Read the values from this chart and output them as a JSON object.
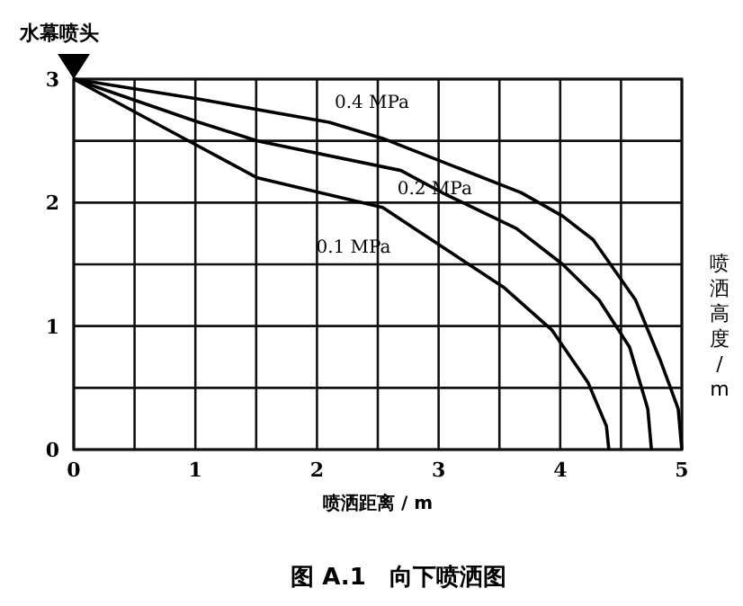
{
  "chart_data": {
    "type": "line",
    "title": "图 A.1　向下喷洒图",
    "xlabel": "喷洒距离 / m",
    "ylabel": "喷洒高度 / m",
    "annotations": [
      {
        "text": "水幕喷头",
        "x": 0,
        "y": 3
      }
    ],
    "xlim": [
      0,
      5
    ],
    "ylim": [
      0,
      3
    ],
    "xticks": [
      0,
      {
        "value": 0.5,
        "label": null
      },
      1,
      {
        "value": 1.5,
        "label": null
      },
      2,
      {
        "value": 2.5,
        "label": null
      },
      3,
      {
        "value": 3.5,
        "label": null
      },
      4,
      {
        "value": 4.5,
        "label": null
      },
      5
    ],
    "yticks": [
      0,
      {
        "value": 0.5,
        "label": null
      },
      1,
      {
        "value": 1.5,
        "label": null
      },
      2,
      {
        "value": 2.5,
        "label": null
      },
      3
    ],
    "grid": true,
    "legend": false,
    "marker": "none",
    "line_style": "solid",
    "series": [
      {
        "name": "0.4 MPa",
        "color": "#000000",
        "x": [
          0,
          1.02,
          2.1,
          2.54,
          3.68,
          4.02,
          4.27,
          4.62,
          4.82,
          4.97,
          5.0
        ],
        "values": [
          3,
          2.84,
          2.65,
          2.52,
          2.08,
          1.89,
          1.7,
          1.21,
          0.73,
          0.33,
          0
        ]
      },
      {
        "name": "0.2 MPa",
        "color": "#000000",
        "x": [
          0,
          1.0,
          1.51,
          2.69,
          3.05,
          3.64,
          4.02,
          4.32,
          4.57,
          4.72,
          4.75
        ],
        "values": [
          3,
          2.66,
          2.5,
          2.26,
          2.07,
          1.79,
          1.5,
          1.21,
          0.83,
          0.33,
          0
        ]
      },
      {
        "name": "0.1 MPa",
        "color": "#000000",
        "x": [
          0,
          1.0,
          1.51,
          2.54,
          2.94,
          3.54,
          3.93,
          4.23,
          4.38,
          4.4
        ],
        "values": [
          3,
          2.47,
          2.2,
          1.96,
          1.7,
          1.31,
          0.97,
          0.54,
          0.19,
          0
        ]
      }
    ]
  }
}
